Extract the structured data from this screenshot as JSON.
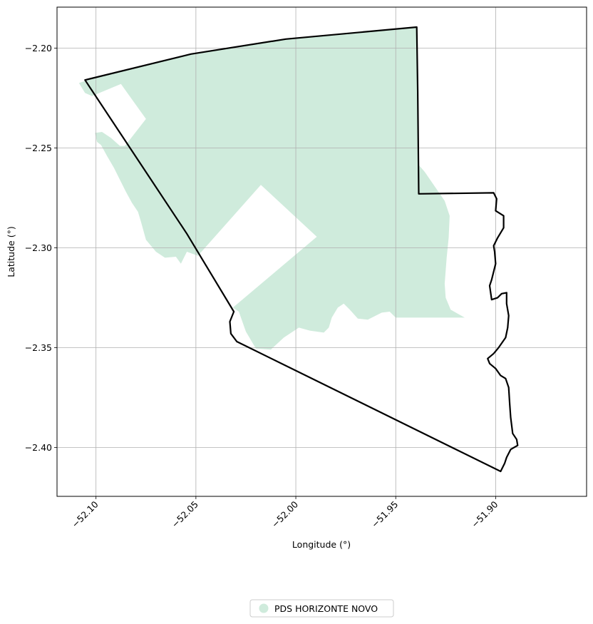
{
  "chart_data": {
    "type": "map",
    "title": "",
    "xlabel": "Longitude (°)",
    "ylabel": "Latitude (°)",
    "xlim": [
      -52.1195,
      -51.8545
    ],
    "ylim": [
      -2.4245,
      -2.1795
    ],
    "grid": true,
    "x_ticks": [
      {
        "value": -52.1,
        "label": "−52.10"
      },
      {
        "value": -52.05,
        "label": "−52.05"
      },
      {
        "value": -52.0,
        "label": "−52.00"
      },
      {
        "value": -51.95,
        "label": "−51.95"
      },
      {
        "value": -51.9,
        "label": "−51.90"
      }
    ],
    "y_ticks": [
      {
        "value": -2.2,
        "label": "−2.20"
      },
      {
        "value": -2.25,
        "label": "−2.25"
      },
      {
        "value": -2.3,
        "label": "−2.30"
      },
      {
        "value": -2.35,
        "label": "−2.35"
      },
      {
        "value": -2.4,
        "label": "−2.40"
      }
    ],
    "legend": {
      "placement": "bottom-center",
      "entries": [
        {
          "label": "PDS HORIZONTE NOVO",
          "color": "#cfebdc"
        }
      ]
    },
    "boundary": {
      "color": "#000000",
      "coordinates": [
        [
          -52.1055,
          -2.216
        ],
        [
          -52.0525,
          -2.203
        ],
        [
          -52.005,
          -2.1955
        ],
        [
          -51.9395,
          -2.1895
        ],
        [
          -51.939,
          -2.222
        ],
        [
          -51.9385,
          -2.273
        ],
        [
          -51.901,
          -2.2725
        ],
        [
          -51.8995,
          -2.2755
        ],
        [
          -51.9,
          -2.2815
        ],
        [
          -51.896,
          -2.284
        ],
        [
          -51.896,
          -2.29
        ],
        [
          -51.899,
          -2.295
        ],
        [
          -51.901,
          -2.299
        ],
        [
          -51.9005,
          -2.302
        ],
        [
          -51.9,
          -2.308
        ],
        [
          -51.902,
          -2.316
        ],
        [
          -51.903,
          -2.319
        ],
        [
          -51.902,
          -2.326
        ],
        [
          -51.899,
          -2.325
        ],
        [
          -51.897,
          -2.323
        ],
        [
          -51.8945,
          -2.3225
        ],
        [
          -51.8945,
          -2.328
        ],
        [
          -51.8935,
          -2.334
        ],
        [
          -51.894,
          -2.34
        ],
        [
          -51.895,
          -2.345
        ],
        [
          -51.8985,
          -2.35
        ],
        [
          -51.901,
          -2.353
        ],
        [
          -51.904,
          -2.3555
        ],
        [
          -51.903,
          -2.358
        ],
        [
          -51.9,
          -2.3605
        ],
        [
          -51.8975,
          -2.364
        ],
        [
          -51.895,
          -2.3655
        ],
        [
          -51.8935,
          -2.37
        ],
        [
          -51.893,
          -2.378
        ],
        [
          -51.8925,
          -2.385
        ],
        [
          -51.8915,
          -2.393
        ],
        [
          -51.8895,
          -2.396
        ],
        [
          -51.889,
          -2.399
        ],
        [
          -51.8925,
          -2.401
        ],
        [
          -51.8945,
          -2.405
        ],
        [
          -51.8955,
          -2.408
        ],
        [
          -51.8975,
          -2.412
        ],
        [
          -52.0295,
          -2.347
        ],
        [
          -52.0325,
          -2.343
        ],
        [
          -52.033,
          -2.337
        ],
        [
          -52.031,
          -2.332
        ],
        [
          -52.0545,
          -2.293
        ],
        [
          -52.1055,
          -2.216
        ]
      ]
    },
    "regions": [
      {
        "name": "PDS HORIZONTE NOVO",
        "color": "#cfebdc",
        "coordinates": [
          [
            -52.1085,
            -2.2175
          ],
          [
            -52.104,
            -2.216
          ],
          [
            -52.0525,
            -2.203
          ],
          [
            -52.005,
            -2.1955
          ],
          [
            -51.9395,
            -2.1895
          ],
          [
            -51.939,
            -2.258
          ],
          [
            -51.9355,
            -2.262
          ],
          [
            -51.93,
            -2.27
          ],
          [
            -51.9255,
            -2.2765
          ],
          [
            -51.923,
            -2.284
          ],
          [
            -51.9235,
            -2.295
          ],
          [
            -51.9245,
            -2.305
          ],
          [
            -51.9255,
            -2.318
          ],
          [
            -51.925,
            -2.325
          ],
          [
            -51.9225,
            -2.331
          ],
          [
            -51.9155,
            -2.335
          ],
          [
            -51.95,
            -2.335
          ],
          [
            -51.953,
            -2.332
          ],
          [
            -51.957,
            -2.3325
          ],
          [
            -51.964,
            -2.336
          ],
          [
            -51.969,
            -2.3355
          ],
          [
            -51.973,
            -2.331
          ],
          [
            -51.976,
            -2.328
          ],
          [
            -51.979,
            -2.33
          ],
          [
            -51.982,
            -2.335
          ],
          [
            -51.9835,
            -2.34
          ],
          [
            -51.986,
            -2.3425
          ],
          [
            -51.993,
            -2.3415
          ],
          [
            -51.9985,
            -2.34
          ],
          [
            -52.006,
            -2.345
          ],
          [
            -52.0125,
            -2.351
          ],
          [
            -52.02,
            -2.3505
          ],
          [
            -52.025,
            -2.342
          ],
          [
            -52.0285,
            -2.332
          ],
          [
            -52.0315,
            -2.33
          ],
          [
            -51.9895,
            -2.2945
          ],
          [
            -52.0175,
            -2.2685
          ],
          [
            -52.049,
            -2.304
          ],
          [
            -52.0545,
            -2.302
          ],
          [
            -52.0575,
            -2.308
          ],
          [
            -52.06,
            -2.3045
          ],
          [
            -52.0655,
            -2.305
          ],
          [
            -52.07,
            -2.302
          ],
          [
            -52.075,
            -2.296
          ],
          [
            -52.0775,
            -2.287
          ],
          [
            -52.079,
            -2.282
          ],
          [
            -52.082,
            -2.2775
          ],
          [
            -52.085,
            -2.272
          ],
          [
            -52.088,
            -2.266
          ],
          [
            -52.091,
            -2.26
          ],
          [
            -52.0945,
            -2.254
          ],
          [
            -52.0975,
            -2.2485
          ],
          [
            -52.0995,
            -2.247
          ],
          [
            -52.1005,
            -2.2425
          ],
          [
            -52.097,
            -2.242
          ],
          [
            -52.0925,
            -2.245
          ],
          [
            -52.088,
            -2.249
          ],
          [
            -52.0855,
            -2.249
          ],
          [
            -52.075,
            -2.2355
          ],
          [
            -52.0875,
            -2.218
          ],
          [
            -52.102,
            -2.224
          ],
          [
            -52.1055,
            -2.2225
          ],
          [
            -52.1085,
            -2.2175
          ]
        ]
      }
    ]
  }
}
